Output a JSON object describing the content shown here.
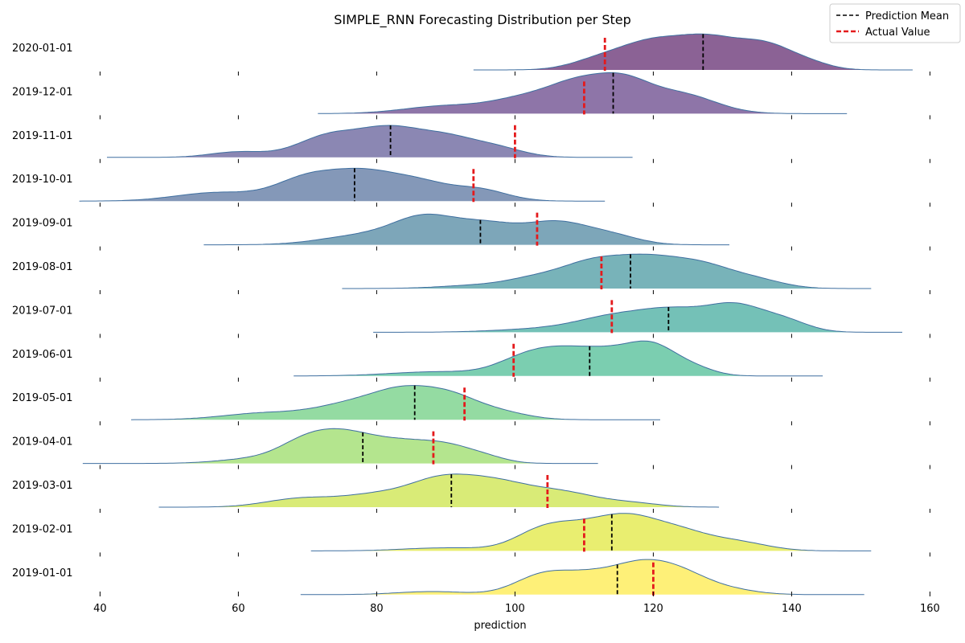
{
  "chart_data": {
    "type": "ridgeline",
    "title": "SIMPLE_RNN Forecasting Distribution per Step",
    "xlabel": "prediction",
    "ylabel": "",
    "xlim": [
      36,
      161
    ],
    "xticks": [
      40,
      60,
      80,
      100,
      120,
      140,
      160
    ],
    "legend": {
      "placement": "top-right",
      "entries": [
        {
          "label": "Prediction Mean",
          "color": "#000000",
          "style": "dashed"
        },
        {
          "label": "Actual Value",
          "color": "#e41a1c",
          "style": "dashed"
        }
      ]
    },
    "series": [
      {
        "name": "2020-01-01",
        "color": "#440154",
        "range": [
          94,
          157.5
        ],
        "mean": 127.2,
        "actual": 113.0,
        "peaks": [
          [
            112,
            0.3,
            4
          ],
          [
            119.5,
            0.82,
            4.5
          ],
          [
            128,
            0.95,
            4.5
          ],
          [
            136.5,
            0.75,
            4
          ],
          [
            143,
            0.15,
            3
          ]
        ]
      },
      {
        "name": "2019-12-01",
        "color": "#482173",
        "range": [
          71.5,
          148
        ],
        "mean": 114.2,
        "actual": 110.0,
        "peaks": [
          [
            90,
            0.25,
            6
          ],
          [
            102,
            0.5,
            5
          ],
          [
            109,
            0.75,
            4
          ],
          [
            115.5,
            0.95,
            4
          ],
          [
            124,
            0.62,
            5
          ]
        ]
      },
      {
        "name": "2019-11-01",
        "color": "#433e85",
        "range": [
          41,
          117
        ],
        "mean": 82.0,
        "actual": 100.0,
        "peaks": [
          [
            60,
            0.18,
            4
          ],
          [
            73,
            0.68,
            4.5
          ],
          [
            82,
            0.88,
            4.5
          ],
          [
            90,
            0.55,
            4
          ],
          [
            97,
            0.32,
            4
          ]
        ]
      },
      {
        "name": "2019-10-01",
        "color": "#38598c",
        "range": [
          37,
          113
        ],
        "mean": 76.8,
        "actual": 94.0,
        "peaks": [
          [
            57,
            0.28,
            6
          ],
          [
            70,
            0.72,
            4.5
          ],
          [
            78,
            0.8,
            4.5
          ],
          [
            86,
            0.58,
            4.5
          ],
          [
            95,
            0.35,
            4
          ]
        ]
      },
      {
        "name": "2019-09-01",
        "color": "#2d708e",
        "range": [
          55,
          131
        ],
        "mean": 95.0,
        "actual": 103.2,
        "peaks": [
          [
            78,
            0.3,
            6
          ],
          [
            87,
            0.82,
            4.5
          ],
          [
            96,
            0.62,
            4.5
          ],
          [
            106,
            0.7,
            4.5
          ],
          [
            114,
            0.28,
            4
          ]
        ]
      },
      {
        "name": "2019-08-01",
        "color": "#25858e",
        "range": [
          75,
          151.5
        ],
        "mean": 116.7,
        "actual": 112.5,
        "peaks": [
          [
            96,
            0.12,
            6
          ],
          [
            103,
            0.25,
            4
          ],
          [
            111,
            0.78,
            4.5
          ],
          [
            119,
            0.82,
            4.5
          ],
          [
            127,
            0.7,
            4.5
          ],
          [
            135,
            0.25,
            4
          ]
        ]
      },
      {
        "name": "2019-07-01",
        "color": "#1e9b8a",
        "range": [
          79.5,
          156
        ],
        "mean": 122.2,
        "actual": 114.0,
        "peaks": [
          [
            105,
            0.12,
            7
          ],
          [
            114,
            0.42,
            5
          ],
          [
            123,
            0.68,
            5
          ],
          [
            132,
            0.78,
            4
          ],
          [
            139,
            0.35,
            3.5
          ]
        ]
      },
      {
        "name": "2019-06-01",
        "color": "#2ab07f",
        "range": [
          68,
          144.5
        ],
        "mean": 110.8,
        "actual": 99.8,
        "peaks": [
          [
            89,
            0.14,
            7
          ],
          [
            101,
            0.42,
            4
          ],
          [
            107,
            0.72,
            4.5
          ],
          [
            114,
            0.58,
            4
          ],
          [
            120,
            0.88,
            3.5
          ],
          [
            126,
            0.22,
            3
          ]
        ]
      },
      {
        "name": "2019-05-01",
        "color": "#52c569",
        "range": [
          44.5,
          121
        ],
        "mean": 85.5,
        "actual": 92.7,
        "peaks": [
          [
            64,
            0.22,
            6
          ],
          [
            76,
            0.45,
            5
          ],
          [
            84,
            0.85,
            4.5
          ],
          [
            91,
            0.62,
            4
          ],
          [
            98,
            0.22,
            4
          ]
        ]
      },
      {
        "name": "2019-04-01",
        "color": "#86d549",
        "range": [
          37.5,
          112
        ],
        "mean": 78.0,
        "actual": 88.2,
        "peaks": [
          [
            62,
            0.14,
            5
          ],
          [
            70,
            0.7,
            4
          ],
          [
            76,
            0.75,
            4
          ],
          [
            83,
            0.55,
            4
          ],
          [
            90,
            0.55,
            4
          ],
          [
            96,
            0.14,
            3
          ]
        ]
      },
      {
        "name": "2019-03-01",
        "color": "#c2df23",
        "range": [
          48.5,
          129.5
        ],
        "mean": 90.8,
        "actual": 104.7,
        "peaks": [
          [
            69,
            0.28,
            5
          ],
          [
            80,
            0.38,
            5
          ],
          [
            89,
            0.75,
            4.5
          ],
          [
            97,
            0.75,
            5
          ],
          [
            107,
            0.45,
            5
          ],
          [
            117,
            0.12,
            4
          ]
        ]
      },
      {
        "name": "2019-02-01",
        "color": "#dce319",
        "range": [
          70.5,
          151.5
        ],
        "mean": 114.0,
        "actual": 110.0,
        "peaks": [
          [
            90,
            0.1,
            6
          ],
          [
            104,
            0.65,
            4
          ],
          [
            110,
            0.55,
            4
          ],
          [
            116,
            0.85,
            4
          ],
          [
            123,
            0.65,
            4.5
          ],
          [
            132,
            0.28,
            4.5
          ]
        ]
      },
      {
        "name": "2019-01-01",
        "color": "#fde725",
        "range": [
          69,
          150.5
        ],
        "mean": 114.8,
        "actual": 120.0,
        "peaks": [
          [
            88,
            0.1,
            5
          ],
          [
            104,
            0.62,
            4
          ],
          [
            111,
            0.52,
            4
          ],
          [
            118,
            0.82,
            4
          ],
          [
            124,
            0.62,
            4
          ],
          [
            131,
            0.15,
            4
          ]
        ]
      }
    ]
  }
}
